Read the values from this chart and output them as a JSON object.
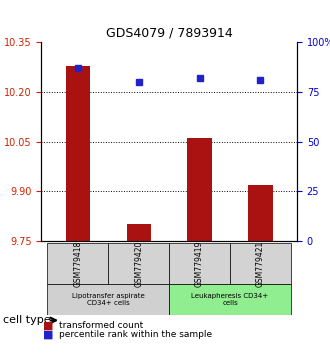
{
  "title": "GDS4079 / 7893914",
  "samples": [
    "GSM779418",
    "GSM779420",
    "GSM779419",
    "GSM779421"
  ],
  "red_values": [
    10.28,
    9.8,
    10.06,
    9.92
  ],
  "blue_values": [
    87,
    80,
    82,
    81
  ],
  "ylim_left": [
    9.75,
    10.35
  ],
  "ylim_right": [
    0,
    100
  ],
  "yticks_left": [
    9.75,
    9.9,
    10.05,
    10.2,
    10.35
  ],
  "yticks_right": [
    0,
    25,
    50,
    75,
    100
  ],
  "ytick_labels_right": [
    "0",
    "25",
    "50",
    "75",
    "100%"
  ],
  "groups": [
    {
      "label": "Lipotransfer aspirate\nCD34+ cells",
      "samples": [
        "GSM779418",
        "GSM779420"
      ],
      "color": "#d0d0d0"
    },
    {
      "label": "Leukapheresis CD34+\ncells",
      "samples": [
        "GSM779419",
        "GSM779421"
      ],
      "color": "#90ee90"
    }
  ],
  "bar_color": "#aa1111",
  "dot_color": "#2222cc",
  "grid_color": "#000000",
  "cell_type_label": "cell type",
  "legend_red": "transformed count",
  "legend_blue": "percentile rank within the sample",
  "bar_width": 0.4,
  "xlabel_color_left": "#cc2200",
  "xlabel_color_right": "#0000cc"
}
